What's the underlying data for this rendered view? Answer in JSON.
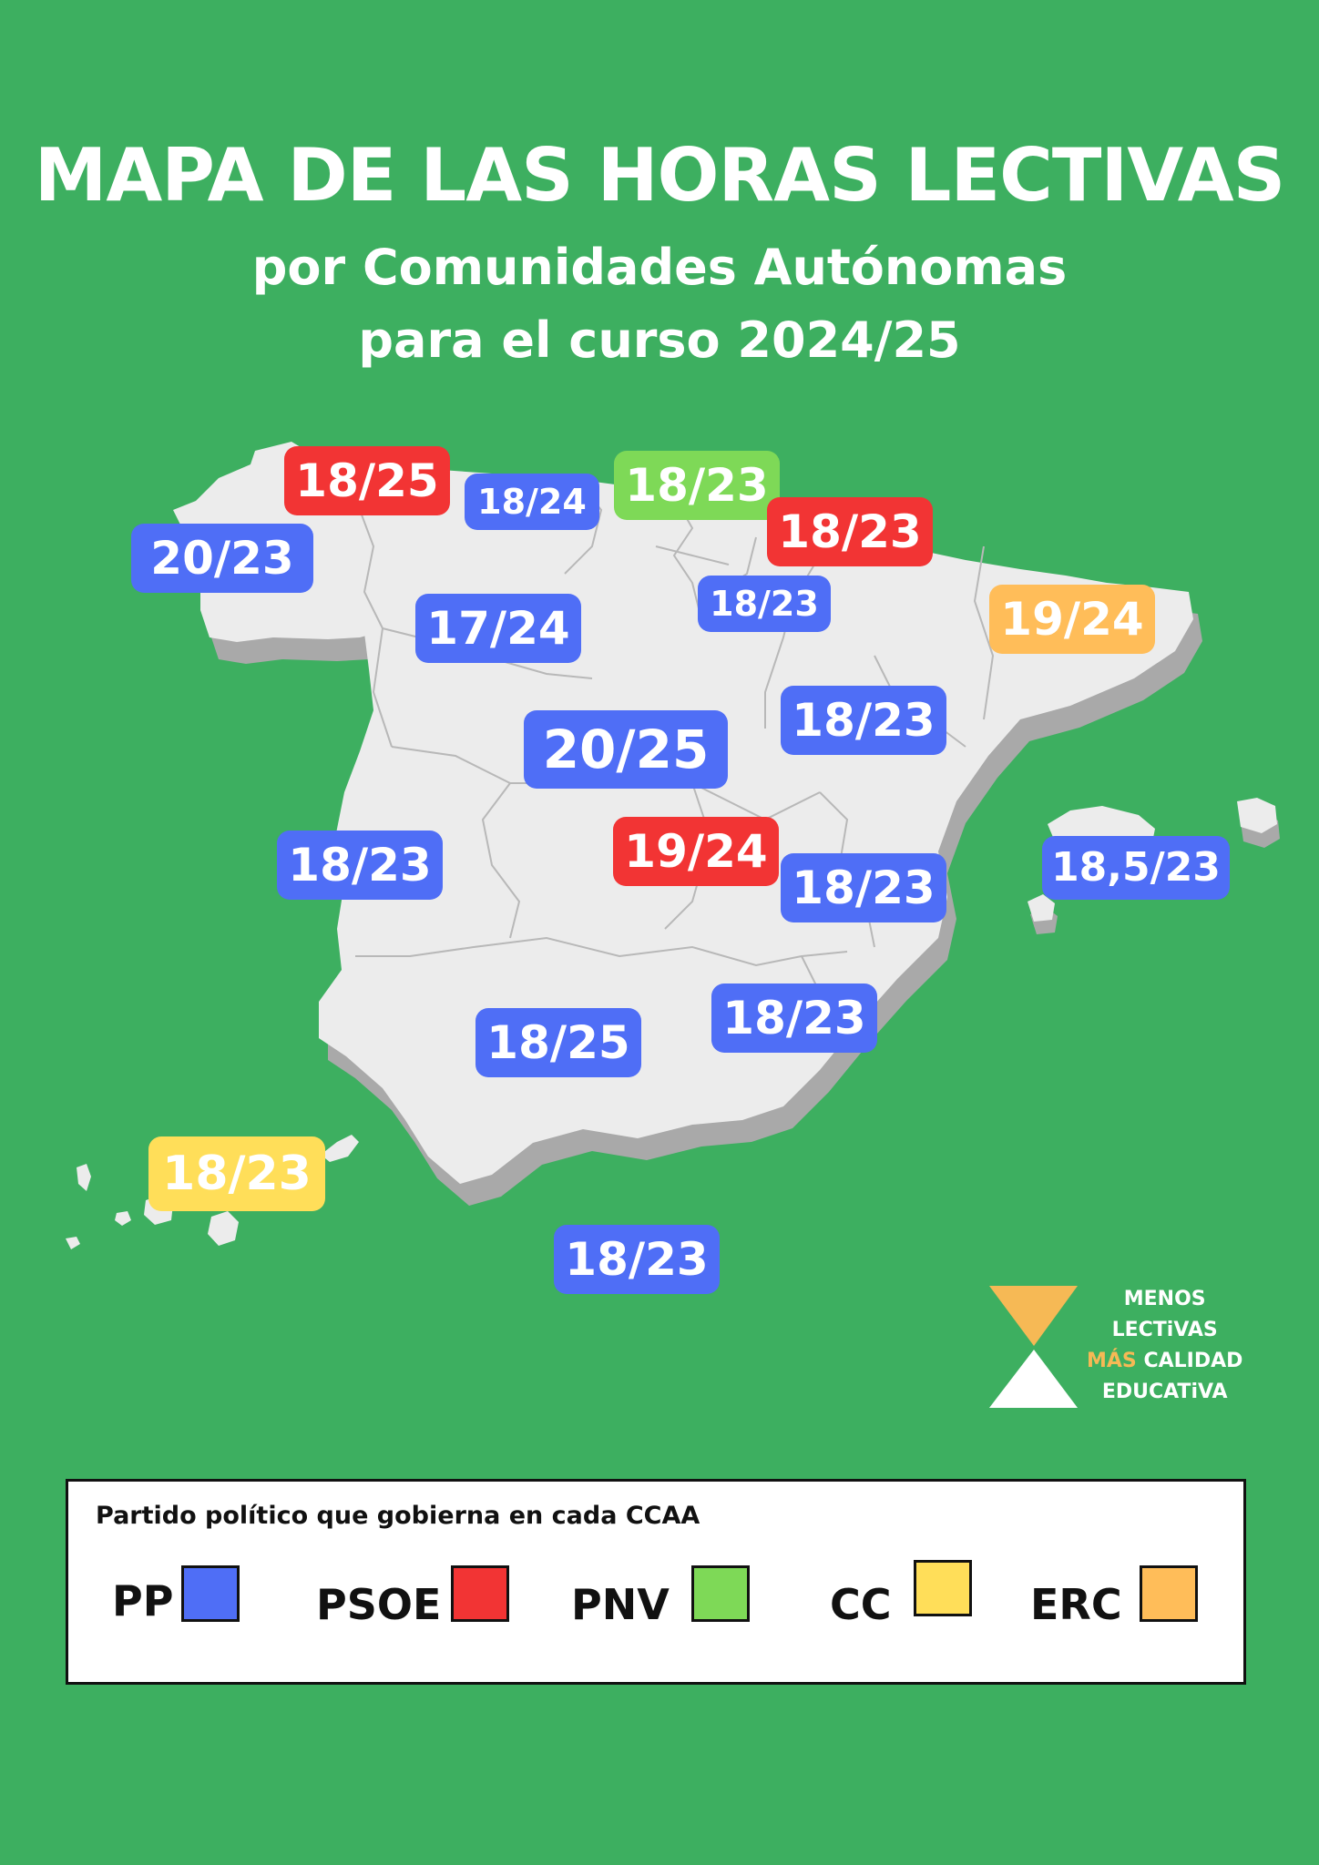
{
  "header": {
    "title": "MAPA DE LAS HORAS LECTIVAS",
    "subtitle_line1": "por Comunidades Autónomas",
    "subtitle_line2": "para el curso 2024/25"
  },
  "party_colors": {
    "PP": "#4f6ef6",
    "PSOE": "#f23434",
    "PNV": "#7ed957",
    "CC": "#ffde59",
    "ERC": "#ffbd59"
  },
  "regions": [
    {
      "value": "20/23",
      "party": "PP"
    },
    {
      "value": "18/25",
      "party": "PSOE"
    },
    {
      "value": "18/24",
      "party": "PP"
    },
    {
      "value": "18/23",
      "party": "PNV"
    },
    {
      "value": "18/23",
      "party": "PSOE"
    },
    {
      "value": "18/23",
      "party": "PP"
    },
    {
      "value": "19/24",
      "party": "ERC"
    },
    {
      "value": "17/24",
      "party": "PP"
    },
    {
      "value": "20/25",
      "party": "PP"
    },
    {
      "value": "18/23",
      "party": "PP"
    },
    {
      "value": "18/23",
      "party": "PP"
    },
    {
      "value": "19/24",
      "party": "PSOE"
    },
    {
      "value": "18/23",
      "party": "PP"
    },
    {
      "value": "18,5/23",
      "party": "PP"
    },
    {
      "value": "18/23",
      "party": "PP"
    },
    {
      "value": "18/25",
      "party": "PP"
    },
    {
      "value": "18/23",
      "party": "CC"
    },
    {
      "value": "18/23",
      "party": "PP"
    }
  ],
  "logo": {
    "line1": "MENOS",
    "line2": "LECTiVAS",
    "line3_accent": "MÁS",
    "line3_rest": "CALIDAD",
    "line4": "EDUCATiVA"
  },
  "legend": {
    "title": "Partido político que gobierna en cada CCAA",
    "items": [
      {
        "label": "PP",
        "party": "PP"
      },
      {
        "label": "PSOE",
        "party": "PSOE"
      },
      {
        "label": "PNV",
        "party": "PNV"
      },
      {
        "label": "CC",
        "party": "CC"
      },
      {
        "label": "ERC",
        "party": "ERC"
      }
    ]
  }
}
